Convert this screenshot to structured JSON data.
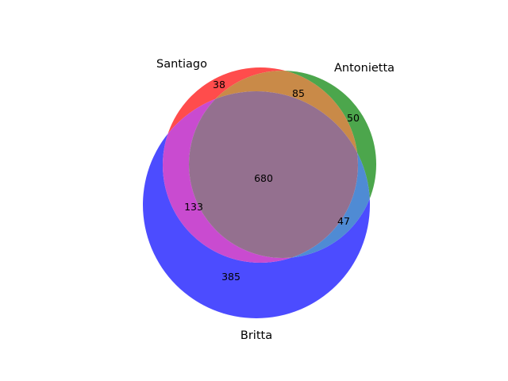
{
  "chart_data": {
    "type": "venn3",
    "sets": [
      {
        "name": "Santiago",
        "color": "#ff0000"
      },
      {
        "name": "Antonietta",
        "color": "#008000"
      },
      {
        "name": "Britta",
        "color": "#0000ff"
      }
    ],
    "regions": {
      "santiago_only": "38",
      "antonietta_only": "50",
      "britta_only": "385",
      "santiago_antonietta": "85",
      "santiago_britta": "133",
      "antonietta_britta": "47",
      "all_three": "680"
    },
    "colors": {
      "santiago_only": "#ff4c4c",
      "antonietta_only": "#4ca64c",
      "britta_only": "#4c4cff",
      "santiago_antonietta": "#c98a48",
      "santiago_britta": "#c94bd0",
      "antonietta_britta": "#4f8bd4",
      "all_three": "#94708f"
    }
  }
}
